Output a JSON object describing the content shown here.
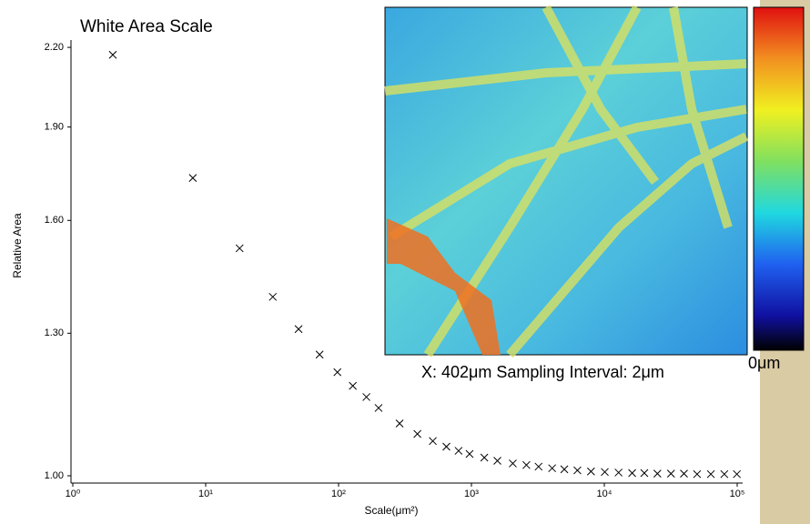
{
  "chart_data": {
    "type": "scatter",
    "title": "White Area Scale",
    "xlabel": "Scale(μm²)",
    "ylabel": "Relative Area",
    "x": [
      2,
      8,
      18,
      32,
      50,
      72,
      98,
      128,
      162,
      200,
      288,
      392,
      512,
      648,
      800,
      968,
      1250,
      1568,
      2048,
      2592,
      3200,
      4050,
      5000,
      6272,
      7938,
      10082,
      12800,
      16200,
      20000,
      25088,
      31752,
      39762,
      49928,
      63368,
      80000,
      99458
    ],
    "values": [
      2.17,
      1.73,
      1.52,
      1.39,
      1.31,
      1.25,
      1.21,
      1.18,
      1.156,
      1.133,
      1.101,
      1.08,
      1.066,
      1.055,
      1.047,
      1.041,
      1.034,
      1.028,
      1.023,
      1.02,
      1.017,
      1.014,
      1.012,
      1.01,
      1.008,
      1.007,
      1.006,
      1.005,
      1.005,
      1.004,
      1.004,
      1.004,
      1.003,
      1.003,
      1.003,
      1.003
    ],
    "color": "#000000",
    "marker": "x",
    "xscale": "log",
    "yscale": "log",
    "xlim": [
      1,
      100000
    ],
    "xticks": [
      {
        "value": 1,
        "label": "10⁰"
      },
      {
        "value": 10,
        "label": "10¹"
      },
      {
        "value": 100,
        "label": "10²"
      },
      {
        "value": 1000,
        "label": "10³"
      },
      {
        "value": 10000,
        "label": "10⁴"
      },
      {
        "value": 100000,
        "label": "10⁵"
      }
    ],
    "ylim": [
      0.99,
      2.23
    ],
    "yticks": [
      {
        "value": 1,
        "label": "1.00"
      },
      {
        "value": 1.3,
        "label": "1.30"
      },
      {
        "value": 1.6,
        "label": "1.60"
      },
      {
        "value": 1.9,
        "label": "1.90"
      },
      {
        "value": 2.2,
        "label": "2.20"
      }
    ],
    "grid": false,
    "inset_caption": "X: 402μm Sampling Interval: 2μm",
    "colorbar_label": "0μm"
  }
}
